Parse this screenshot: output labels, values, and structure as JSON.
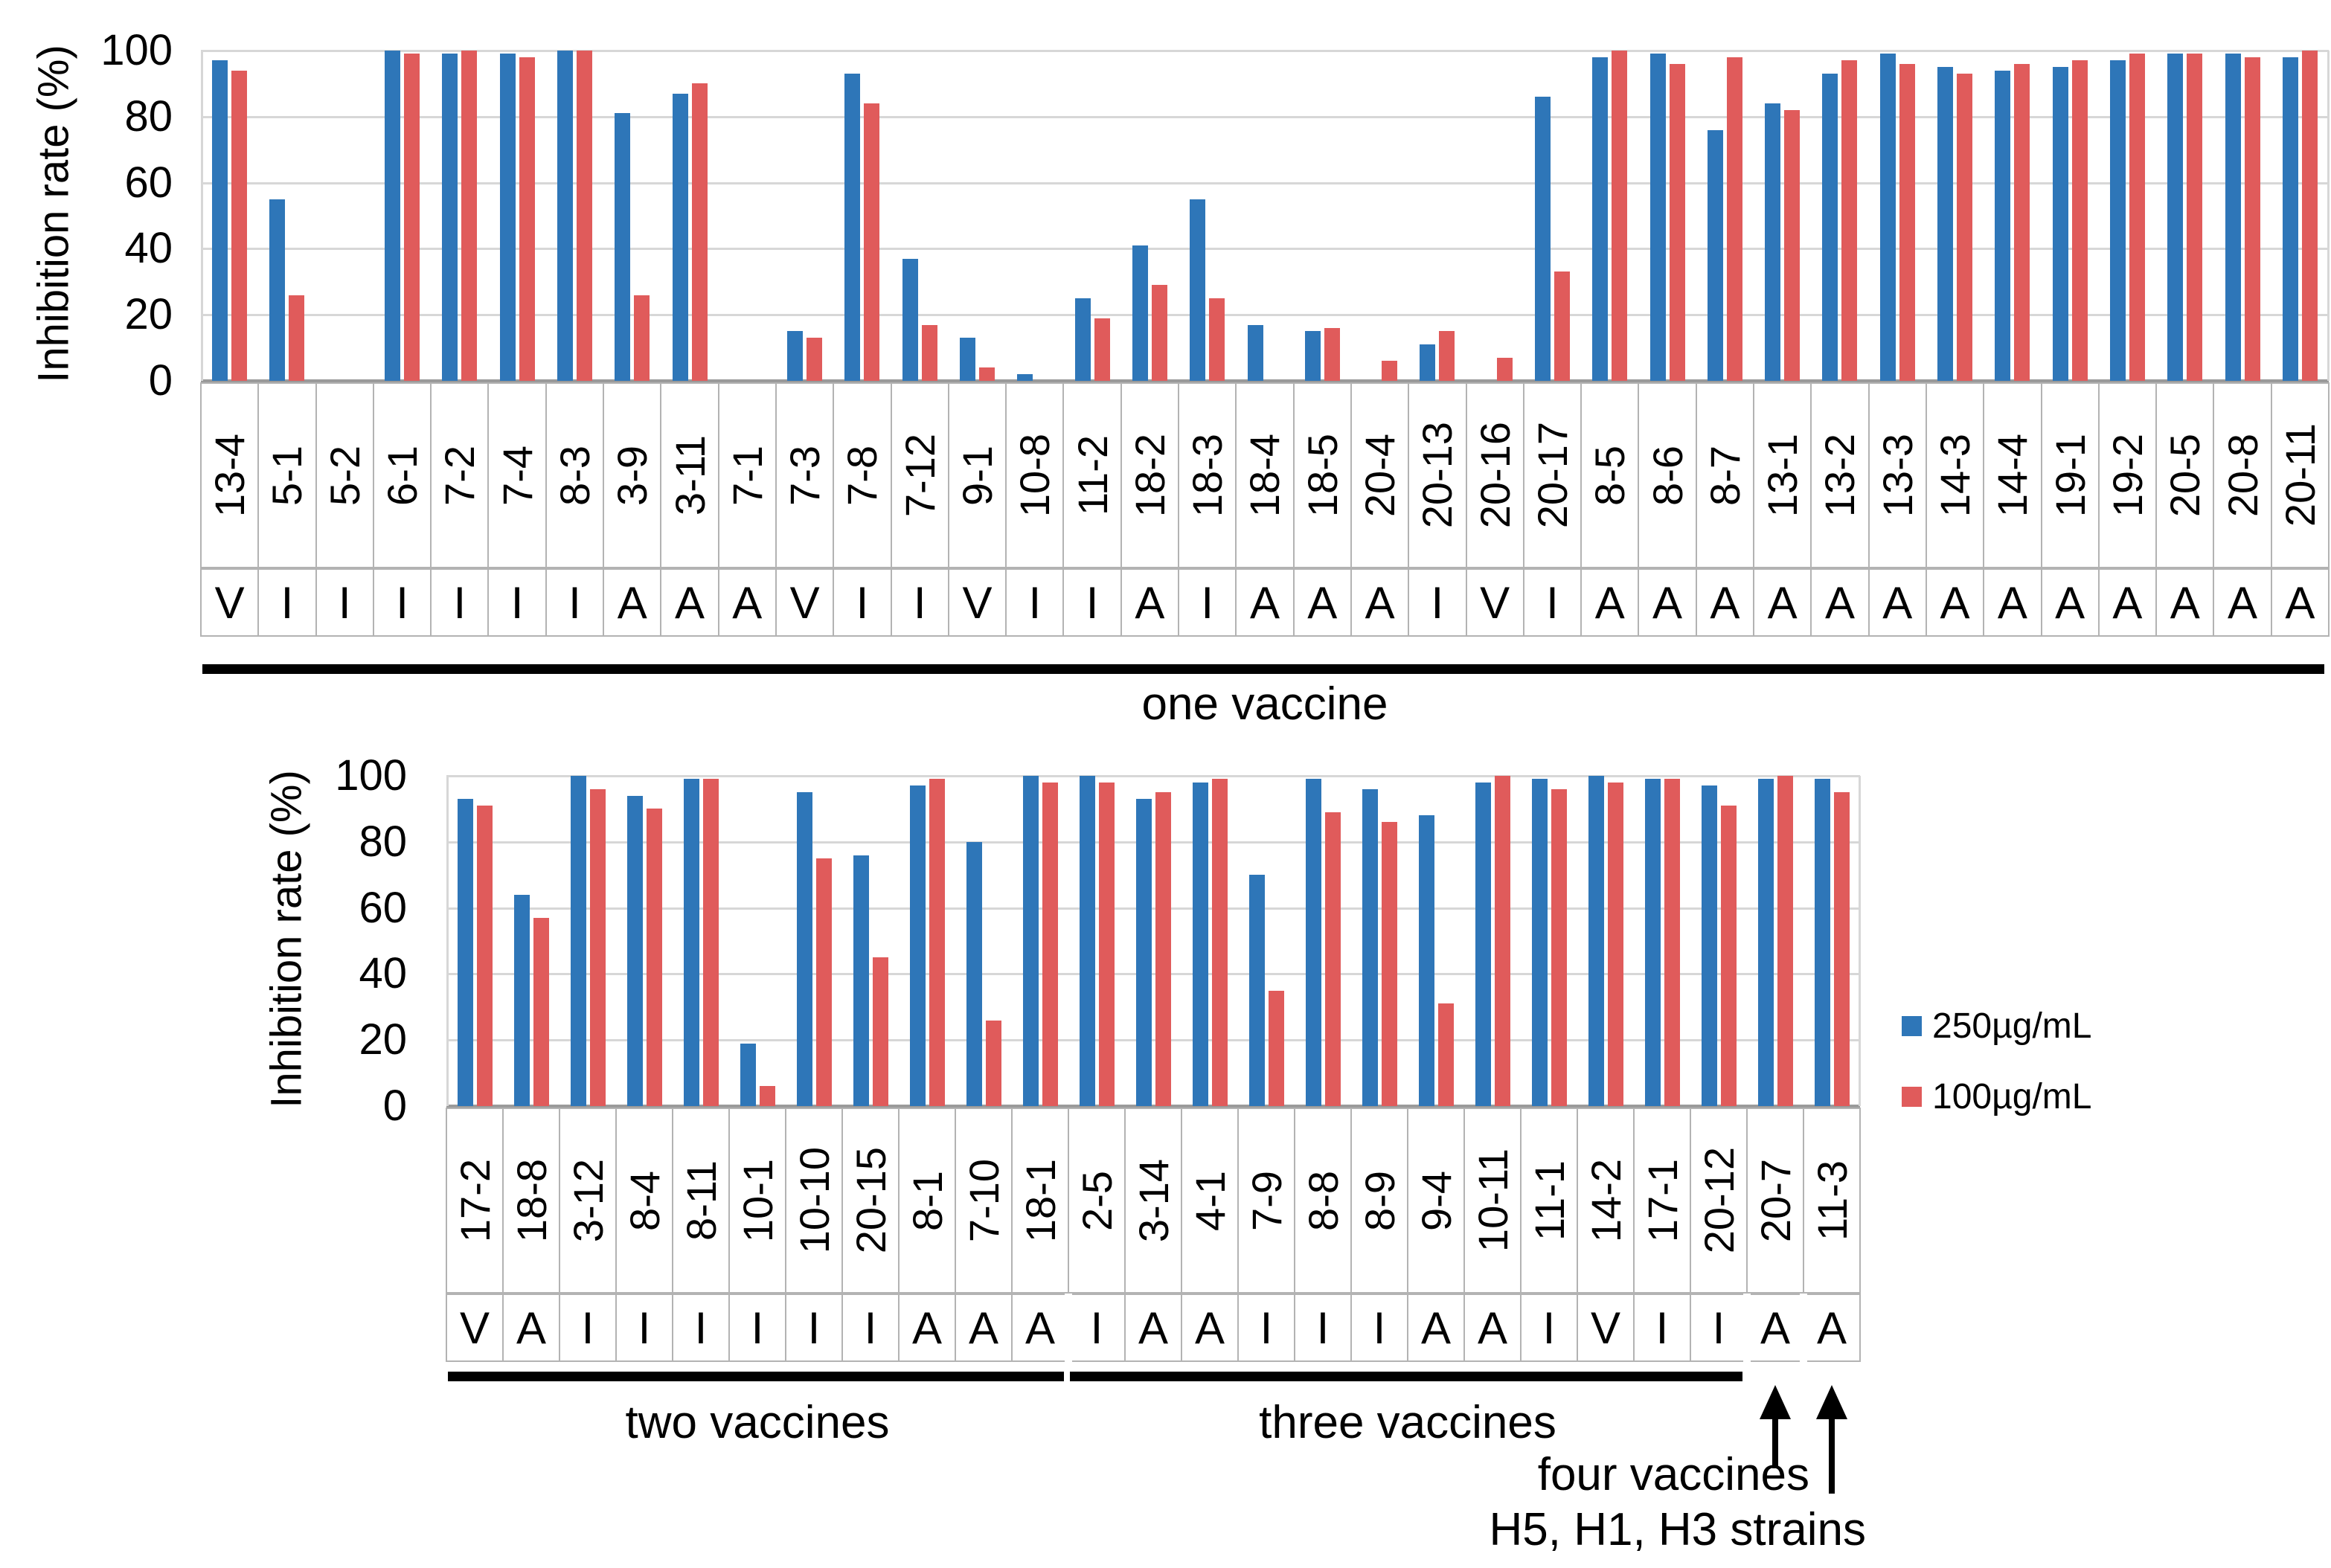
{
  "legend": {
    "items": [
      {
        "label": "250µg/mL",
        "color": "#2E76B8"
      },
      {
        "label": "100µg/mL",
        "color": "#E05B5B"
      }
    ]
  },
  "chart_data": [
    {
      "type": "bar",
      "title": "",
      "xlabel": "",
      "ylabel": "Inhibition rate (%)",
      "ylim": [
        0,
        100
      ],
      "yticks": [
        0,
        20,
        40,
        60,
        80,
        100
      ],
      "grid": "horizontal",
      "categories": [
        "13-4",
        "5-1",
        "5-2",
        "6-1",
        "7-2",
        "7-4",
        "8-3",
        "3-9",
        "3-11",
        "7-1",
        "7-3",
        "7-8",
        "7-12",
        "9-1",
        "10-8",
        "11-2",
        "18-2",
        "18-3",
        "18-4",
        "18-5",
        "20-4",
        "20-13",
        "20-16",
        "20-17",
        "8-5",
        "8-6",
        "8-7",
        "13-1",
        "13-2",
        "13-3",
        "14-3",
        "14-4",
        "19-1",
        "19-2",
        "20-5",
        "20-8",
        "20-11"
      ],
      "strain_letters": [
        "V",
        "I",
        "I",
        "I",
        "I",
        "I",
        "I",
        "A",
        "A",
        "A",
        "V",
        "I",
        "I",
        "V",
        "I",
        "I",
        "A",
        "I",
        "A",
        "A",
        "A",
        "I",
        "V",
        "I",
        "A",
        "A",
        "A",
        "A",
        "A",
        "A",
        "A",
        "A",
        "A",
        "A",
        "A",
        "A",
        "A"
      ],
      "series": [
        {
          "name": "250µg/mL",
          "color": "#2E76B8",
          "values": [
            97,
            55,
            0,
            100,
            99,
            99,
            100,
            81,
            87,
            0,
            15,
            93,
            37,
            13,
            2,
            25,
            41,
            55,
            17,
            15,
            0,
            11,
            0,
            86,
            98,
            99,
            76,
            84,
            93,
            99,
            95,
            94,
            95,
            97,
            99,
            99,
            98
          ]
        },
        {
          "name": "100µg/mL",
          "color": "#E05B5B",
          "values": [
            94,
            26,
            0,
            99,
            100,
            98,
            100,
            26,
            90,
            0,
            13,
            84,
            17,
            4,
            0,
            19,
            29,
            25,
            0,
            16,
            6,
            15,
            7,
            33,
            100,
            96,
            98,
            82,
            97,
            96,
            93,
            96,
            97,
            99,
            99,
            98,
            100
          ]
        }
      ],
      "groups": [
        {
          "label": "one vaccine",
          "start": 0,
          "end": 36
        }
      ]
    },
    {
      "type": "bar",
      "title": "",
      "xlabel": "",
      "ylabel": "Inhibition rate (%)",
      "ylim": [
        0,
        100
      ],
      "yticks": [
        0,
        20,
        40,
        60,
        80,
        100
      ],
      "grid": "horizontal",
      "categories": [
        "17-2",
        "18-8",
        "3-12",
        "8-4",
        "8-11",
        "10-1",
        "10-10",
        "20-15",
        "8-1",
        "7-10",
        "18-1",
        "2-5",
        "3-14",
        "4-1",
        "7-9",
        "8-8",
        "8-9",
        "9-4",
        "10-11",
        "11-1",
        "14-2",
        "17-1",
        "20-12",
        "20-7",
        "11-3"
      ],
      "strain_letters": [
        "V",
        "A",
        "I",
        "I",
        "I",
        "I",
        "I",
        "I",
        "A",
        "A",
        "A",
        "I",
        "A",
        "A",
        "I",
        "I",
        "I",
        "A",
        "A",
        "I",
        "V",
        "I",
        "I",
        "A",
        "A"
      ],
      "series": [
        {
          "name": "250µg/mL",
          "color": "#2E76B8",
          "values": [
            93,
            64,
            100,
            94,
            99,
            19,
            95,
            76,
            97,
            80,
            100,
            100,
            93,
            98,
            70,
            99,
            96,
            88,
            98,
            99,
            100,
            99,
            97,
            99,
            99
          ]
        },
        {
          "name": "100µg/mL",
          "color": "#E05B5B",
          "values": [
            91,
            57,
            96,
            90,
            99,
            6,
            75,
            45,
            99,
            26,
            98,
            98,
            95,
            99,
            35,
            89,
            86,
            31,
            100,
            96,
            98,
            99,
            91,
            100,
            95
          ]
        }
      ],
      "groups": [
        {
          "label": "two vaccines",
          "start": 0,
          "end": 10
        },
        {
          "label": "three vaccines",
          "start": 11,
          "end": 22
        }
      ],
      "annotations": [
        {
          "label": "four vaccines",
          "category": "20-7",
          "index": 23,
          "arrow": "short"
        },
        {
          "label": "H5, H1, H3 strains",
          "category": "11-3",
          "index": 24,
          "arrow": "long"
        }
      ]
    }
  ]
}
